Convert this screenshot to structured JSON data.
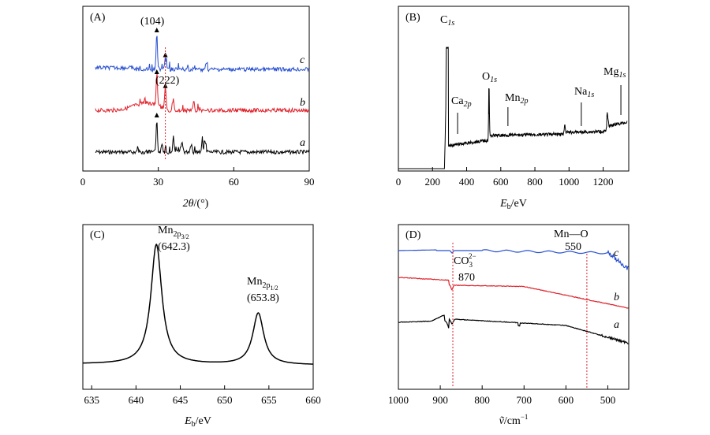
{
  "chart_data": [
    {
      "panel": "A",
      "type": "line",
      "xlabel_var": "2θ",
      "xlabel_unit": "/(°)",
      "xlim": [
        0,
        90
      ],
      "xticks": [
        0,
        30,
        60,
        90
      ],
      "tick_labels": [
        "0",
        "30",
        "60",
        "90"
      ],
      "series": [
        {
          "name": "a",
          "color": "#000000",
          "peaks": [
            {
              "x": 29.4,
              "h": 1.0
            },
            {
              "x": 31.5,
              "h": 0.25
            },
            {
              "x": 36.0,
              "h": 0.35
            },
            {
              "x": 39.4,
              "h": 0.3
            },
            {
              "x": 43.1,
              "h": 0.25
            },
            {
              "x": 47.5,
              "h": 0.3
            },
            {
              "x": 48.5,
              "h": 0.3
            }
          ]
        },
        {
          "name": "b",
          "color": "#e0212a",
          "peaks": [
            {
              "x": 29.4,
              "h": 1.0
            },
            {
              "x": 32.8,
              "h": 0.6
            },
            {
              "x": 36.0,
              "h": 0.3
            },
            {
              "x": 44.0,
              "h": 0.2
            }
          ]
        },
        {
          "name": "c",
          "color": "#2850d0",
          "peaks": [
            {
              "x": 29.4,
              "h": 1.0
            },
            {
              "x": 32.8,
              "h": 0.3
            },
            {
              "x": 49.0,
              "h": 0.2
            }
          ]
        }
      ],
      "annotations": [
        "(104)",
        "(222)"
      ],
      "reference_line_x": 32.8
    },
    {
      "panel": "B",
      "type": "line",
      "xlabel_var": "E",
      "xlabel_sub": "b",
      "xlabel_unit": "/eV",
      "xlim": [
        0,
        1350
      ],
      "xticks": [
        0,
        200,
        400,
        600,
        800,
        1000,
        1200
      ],
      "tick_labels": [
        "0",
        "200",
        "400",
        "600",
        "800",
        "1000",
        "1200"
      ],
      "peaks": [
        {
          "label": "C",
          "sub": "1s",
          "x": 285
        },
        {
          "label": "Ca",
          "sub": "2p",
          "x": 347
        },
        {
          "label": "O",
          "sub": "1s",
          "x": 531
        },
        {
          "label": "Mn",
          "sub": "2p",
          "x": 642
        },
        {
          "label": "Na",
          "sub": "1s",
          "x": 1072
        },
        {
          "label": "Mg",
          "sub": "1s",
          "x": 1304
        }
      ]
    },
    {
      "panel": "C",
      "type": "line",
      "xlabel_var": "E",
      "xlabel_sub": "b",
      "xlabel_unit": "/eV",
      "xlim": [
        634,
        660
      ],
      "xticks": [
        635,
        640,
        645,
        650,
        655,
        660
      ],
      "tick_labels": [
        "635",
        "640",
        "645",
        "650",
        "655",
        "660"
      ],
      "peaks": [
        {
          "label": "Mn",
          "sub": "2p3/2",
          "x": 642.3,
          "value_label": "(642.3)",
          "h": 1.0
        },
        {
          "label": "Mn",
          "sub": "2p1/2",
          "x": 653.8,
          "value_label": "(653.8)",
          "h": 0.43
        }
      ]
    },
    {
      "panel": "D",
      "type": "line",
      "xlabel_var": "ṽ",
      "xlabel_unit": "/cm",
      "xlabel_sup": "−1",
      "xlim": [
        1000,
        450
      ],
      "xticks": [
        1000,
        900,
        800,
        700,
        600,
        500
      ],
      "tick_labels": [
        "1000",
        "900",
        "800",
        "700",
        "600",
        "500"
      ],
      "series": [
        {
          "name": "a",
          "color": "#000000"
        },
        {
          "name": "b",
          "color": "#e0212a"
        },
        {
          "name": "c",
          "color": "#2850d0"
        }
      ],
      "annotations": [
        {
          "text": "Mn—O",
          "value": "550",
          "x": 550
        },
        {
          "text": "CO",
          "sub": "3",
          "sup": "2−",
          "value": "870",
          "x": 870
        }
      ]
    }
  ],
  "panels": {
    "a": "(A)",
    "b": "(B)",
    "c": "(C)",
    "d": "(D)"
  }
}
